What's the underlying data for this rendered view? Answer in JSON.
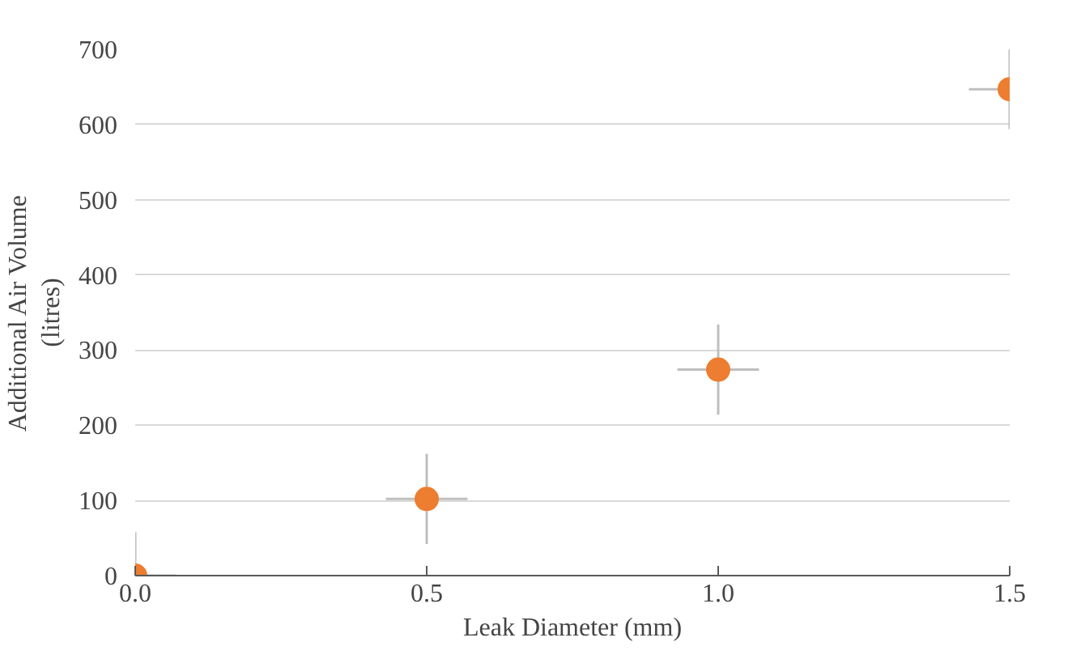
{
  "chart_data": {
    "type": "scatter",
    "xlabel": "Leak Diameter (mm)",
    "ylabel": "Additional Air Volume\n(litres)",
    "x": [
      0,
      0.5,
      1.0,
      1.5
    ],
    "series": [
      {
        "color": "#ed7d31",
        "values": [
          0,
          102,
          274,
          647
        ],
        "errors": [
          58,
          60,
          60,
          53
        ],
        "xerrors": [
          0.07,
          0.07,
          0.07,
          0.07
        ]
      }
    ],
    "xlim": [
      0,
      1.5
    ],
    "ylim": [
      0,
      700
    ],
    "xticks": [
      {
        "value": 0,
        "label": "0.0"
      },
      {
        "value": 0.5,
        "label": "0.5"
      },
      {
        "value": 1.0,
        "label": "1.0"
      },
      {
        "value": 1.5,
        "label": "1.5"
      }
    ],
    "yticks": [
      0,
      100,
      200,
      300,
      400,
      500,
      600,
      700
    ],
    "grid": "y",
    "marker": "circle"
  }
}
